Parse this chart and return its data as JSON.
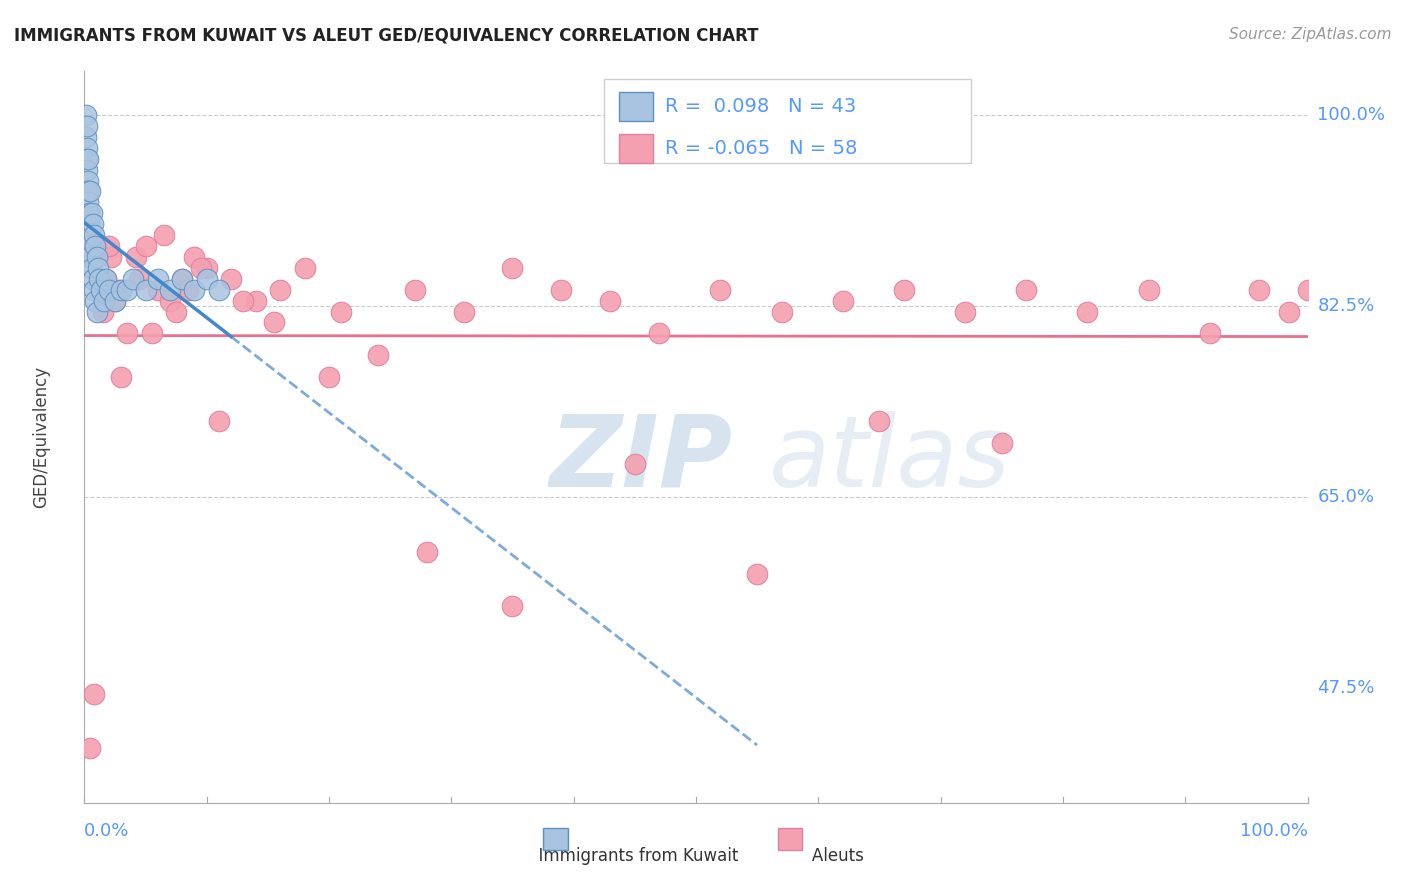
{
  "title": "IMMIGRANTS FROM KUWAIT VS ALEUT GED/EQUIVALENCY CORRELATION CHART",
  "source": "Source: ZipAtlas.com",
  "ylabel": "GED/Equivalency",
  "right_ytick_labels": [
    "47.5%",
    "65.0%",
    "82.5%",
    "100.0%"
  ],
  "right_ytick_values": [
    0.475,
    0.65,
    0.825,
    1.0
  ],
  "color_kuwait": "#a8c4e0",
  "color_aleut": "#f4a0b0",
  "color_right_labels": "#5599ff",
  "color_legend_text": "#5599ff",
  "color_trend_kuwait": "#4488cc",
  "color_trend_aleut": "#e87090",
  "watermark_zip": "ZIP",
  "watermark_atlas": "atlas",
  "kuwait_x": [
    0.001,
    0.001,
    0.002,
    0.002,
    0.002,
    0.002,
    0.003,
    0.003,
    0.003,
    0.003,
    0.004,
    0.004,
    0.004,
    0.005,
    0.005,
    0.005,
    0.006,
    0.006,
    0.007,
    0.007,
    0.008,
    0.008,
    0.009,
    0.009,
    0.01,
    0.01,
    0.011,
    0.012,
    0.014,
    0.016,
    0.018,
    0.02,
    0.025,
    0.03,
    0.035,
    0.04,
    0.05,
    0.06,
    0.07,
    0.08,
    0.09,
    0.1,
    0.11
  ],
  "kuwait_y": [
    1.0,
    0.98,
    0.99,
    0.97,
    0.96,
    0.95,
    0.94,
    0.96,
    0.93,
    0.92,
    0.91,
    0.9,
    0.89,
    0.93,
    0.88,
    0.87,
    0.91,
    0.86,
    0.9,
    0.85,
    0.89,
    0.84,
    0.88,
    0.83,
    0.87,
    0.82,
    0.86,
    0.85,
    0.84,
    0.83,
    0.85,
    0.84,
    0.83,
    0.84,
    0.84,
    0.85,
    0.84,
    0.85,
    0.84,
    0.85,
    0.84,
    0.85,
    0.84
  ],
  "aleut_x": [
    0.005,
    0.008,
    0.015,
    0.018,
    0.022,
    0.028,
    0.035,
    0.042,
    0.05,
    0.06,
    0.07,
    0.08,
    0.09,
    0.1,
    0.12,
    0.14,
    0.16,
    0.18,
    0.21,
    0.24,
    0.27,
    0.31,
    0.35,
    0.39,
    0.43,
    0.47,
    0.52,
    0.57,
    0.62,
    0.67,
    0.72,
    0.77,
    0.82,
    0.87,
    0.92,
    0.96,
    0.985,
    1.0,
    0.02,
    0.025,
    0.03,
    0.045,
    0.055,
    0.065,
    0.075,
    0.085,
    0.095,
    0.11,
    0.13,
    0.155,
    0.2,
    0.28,
    0.35,
    0.45,
    0.55,
    0.65,
    0.75
  ],
  "aleut_y": [
    0.42,
    0.47,
    0.82,
    0.85,
    0.87,
    0.84,
    0.8,
    0.87,
    0.88,
    0.84,
    0.83,
    0.85,
    0.87,
    0.86,
    0.85,
    0.83,
    0.84,
    0.86,
    0.82,
    0.78,
    0.84,
    0.82,
    0.86,
    0.84,
    0.83,
    0.8,
    0.84,
    0.82,
    0.83,
    0.84,
    0.82,
    0.84,
    0.82,
    0.84,
    0.8,
    0.84,
    0.82,
    0.84,
    0.88,
    0.83,
    0.76,
    0.85,
    0.8,
    0.89,
    0.82,
    0.84,
    0.86,
    0.72,
    0.83,
    0.81,
    0.76,
    0.6,
    0.55,
    0.68,
    0.58,
    0.72,
    0.7
  ],
  "xlim": [
    0.0,
    1.0
  ],
  "ylim": [
    0.37,
    1.04
  ],
  "hline_vals": [
    0.825,
    0.65,
    1.0
  ],
  "xticklabels_pos": [
    0.0,
    0.1,
    0.2,
    0.3,
    0.4,
    0.5,
    0.6,
    0.7,
    0.8,
    0.9,
    1.0
  ]
}
